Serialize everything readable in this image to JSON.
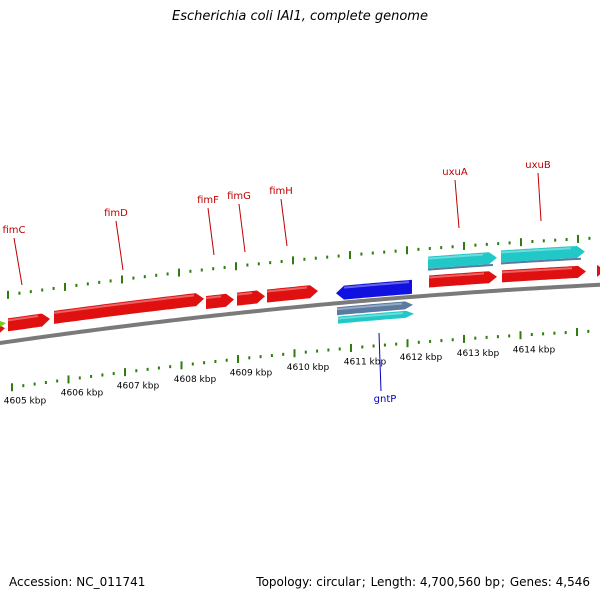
{
  "title": "Escherichia coli IAI1, complete genome",
  "footer": {
    "accession_label": "Accession:",
    "accession": "NC_011741",
    "topology_label": "Topology:",
    "topology": "circular",
    "length_label": "Length:",
    "length": "4,700,560 bp",
    "genes_label": "Genes:",
    "genes": "4,546"
  },
  "colors": {
    "backbone": "#7a7a7a",
    "tick": "#2e7d0e",
    "gene_red": "#e01010",
    "gene_cyan": "#20c8c8",
    "gene_blue": "#1010e0",
    "gene_slate": "#5a7aa0",
    "gene_green": "#7acc1a",
    "label_red": "#c00000",
    "label_blue": "#0000c0"
  },
  "scale_labels": [
    "4605 kbp",
    "4606 kbp",
    "4607 kbp",
    "4608 kbp",
    "4609 kbp",
    "4610 kbp",
    "4611 kbp",
    "4612 kbp",
    "4613 kbp",
    "4614 kbp"
  ],
  "gene_labels_forward": [
    "fimC",
    "fimD",
    "fimF",
    "fimG",
    "fimH",
    "uxuA",
    "uxuB"
  ],
  "gene_labels_reverse": [
    "gntP"
  ]
}
